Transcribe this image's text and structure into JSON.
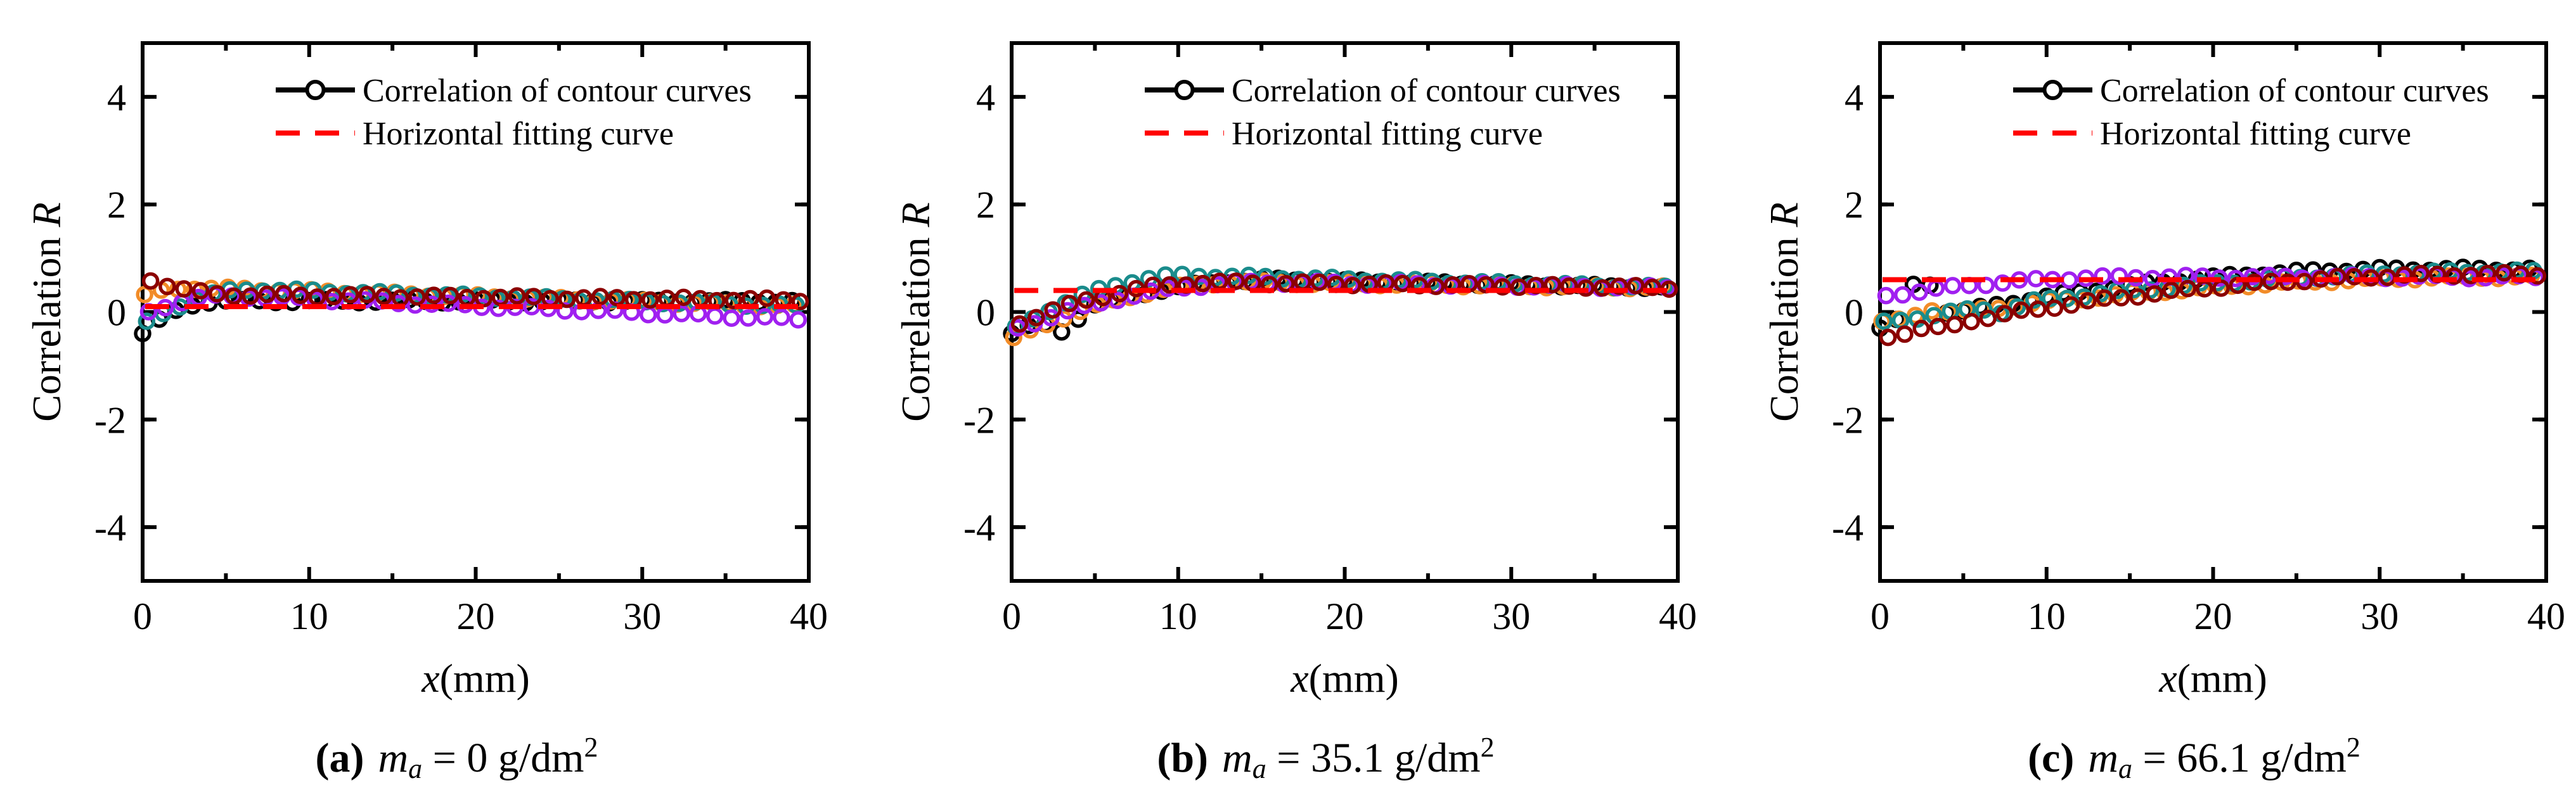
{
  "legend": {
    "series_label": "Correlation of contour curves",
    "fit_label": "Horizontal fitting curve"
  },
  "colors": {
    "black": "#000000",
    "orange": "#f28c28",
    "teal": "#1a8c8c",
    "purple": "#a020f0",
    "maroon": "#8b0000",
    "fit": "#ff0000"
  },
  "chart_data": [
    {
      "type": "scatter",
      "panel_label": "(a)",
      "caption_var": "m",
      "caption_sub": "a",
      "caption_value": " = 0 g/dm",
      "caption_sup": "2",
      "ylabel_text": "Correlation ",
      "ylabel_var": "R",
      "xlabel_var": "x",
      "xlabel_unit": "(mm)",
      "xlim": [
        0,
        40
      ],
      "ylim": [
        -5,
        5
      ],
      "xticks": [
        0,
        10,
        20,
        30,
        40
      ],
      "yticks": [
        -4,
        -2,
        0,
        2,
        4
      ],
      "fit_value": 0.1,
      "series": [
        {
          "color_key": "black",
          "shape": "early",
          "start": -0.4,
          "peak": 0.2,
          "peak_x": 4.5,
          "end": 0.2
        },
        {
          "color_key": "orange",
          "shape": "early",
          "start": 0.3,
          "peak": 0.45,
          "peak_x": 3,
          "end": 0.1
        },
        {
          "color_key": "teal",
          "shape": "early",
          "start": -0.2,
          "peak": 0.42,
          "peak_x": 6.5,
          "end": 0.1
        },
        {
          "color_key": "purple",
          "shape": "early",
          "start": 0.0,
          "peak": 0.3,
          "peak_x": 5,
          "end": -0.15
        },
        {
          "color_key": "maroon",
          "shape": "early",
          "start": 0.6,
          "peak": 0.32,
          "peak_x": 5,
          "end": 0.22
        }
      ]
    },
    {
      "type": "scatter",
      "panel_label": "(b)",
      "caption_var": "m",
      "caption_sub": "a",
      "caption_value": " = 35.1 g/dm",
      "caption_sup": "2",
      "ylabel_text": "Correlation ",
      "ylabel_var": "R",
      "xlabel_var": "x",
      "xlabel_unit": "(mm)",
      "xlim": [
        0,
        40
      ],
      "ylim": [
        -5,
        5
      ],
      "xticks": [
        0,
        10,
        20,
        30,
        40
      ],
      "yticks": [
        -4,
        -2,
        0,
        2,
        4
      ],
      "fit_value": 0.4,
      "series": [
        {
          "color_key": "black",
          "shape": "rise",
          "start": -0.4,
          "peak": 0.6,
          "peak_x": 16,
          "end": 0.45,
          "dip_x": 3,
          "dip": -0.35
        },
        {
          "color_key": "orange",
          "shape": "rise",
          "start": -0.5,
          "peak": 0.55,
          "peak_x": 14,
          "end": 0.45
        },
        {
          "color_key": "teal",
          "shape": "rise",
          "start": -0.3,
          "peak": 0.68,
          "peak_x": 10.5,
          "end": 0.45
        },
        {
          "color_key": "purple",
          "shape": "rise",
          "start": -0.3,
          "peak": 0.55,
          "peak_x": 15,
          "end": 0.45
        },
        {
          "color_key": "maroon",
          "shape": "rise",
          "start": -0.2,
          "peak": 0.55,
          "peak_x": 12,
          "end": 0.45
        }
      ]
    },
    {
      "type": "scatter",
      "panel_label": "(c)",
      "caption_var": "m",
      "caption_sub": "a",
      "caption_value": " = 66.1 g/dm",
      "caption_sup": "2",
      "ylabel_text": "Correlation ",
      "ylabel_var": "R",
      "xlabel_var": "x",
      "xlabel_unit": "(mm)",
      "xlim": [
        0,
        40
      ],
      "ylim": [
        -5,
        5
      ],
      "xticks": [
        0,
        10,
        20,
        30,
        40
      ],
      "yticks": [
        -4,
        -2,
        0,
        2,
        4
      ],
      "fit_value": 0.6,
      "series": [
        {
          "color_key": "black",
          "shape": "rise",
          "start": -0.3,
          "peak": 0.8,
          "peak_x": 32,
          "end": 0.8,
          "dip_x": 2.5,
          "dip": 0.8
        },
        {
          "color_key": "orange",
          "shape": "rise",
          "start": -0.2,
          "peak": 0.65,
          "peak_x": 38,
          "end": 0.65,
          "dip_x": 3,
          "dip": 0.05
        },
        {
          "color_key": "teal",
          "shape": "rise",
          "start": -0.2,
          "peak": 0.75,
          "peak_x": 38,
          "end": 0.75,
          "dip_x": 7,
          "dip": 0.0
        },
        {
          "color_key": "purple",
          "shape": "rise",
          "start": 0.3,
          "peak": 0.65,
          "peak_x": 15,
          "end": 0.65
        },
        {
          "color_key": "maroon",
          "shape": "rise",
          "start": -0.45,
          "peak": 0.7,
          "peak_x": 36,
          "end": 0.7,
          "dip_x": 3,
          "dip": -0.3
        }
      ]
    }
  ]
}
